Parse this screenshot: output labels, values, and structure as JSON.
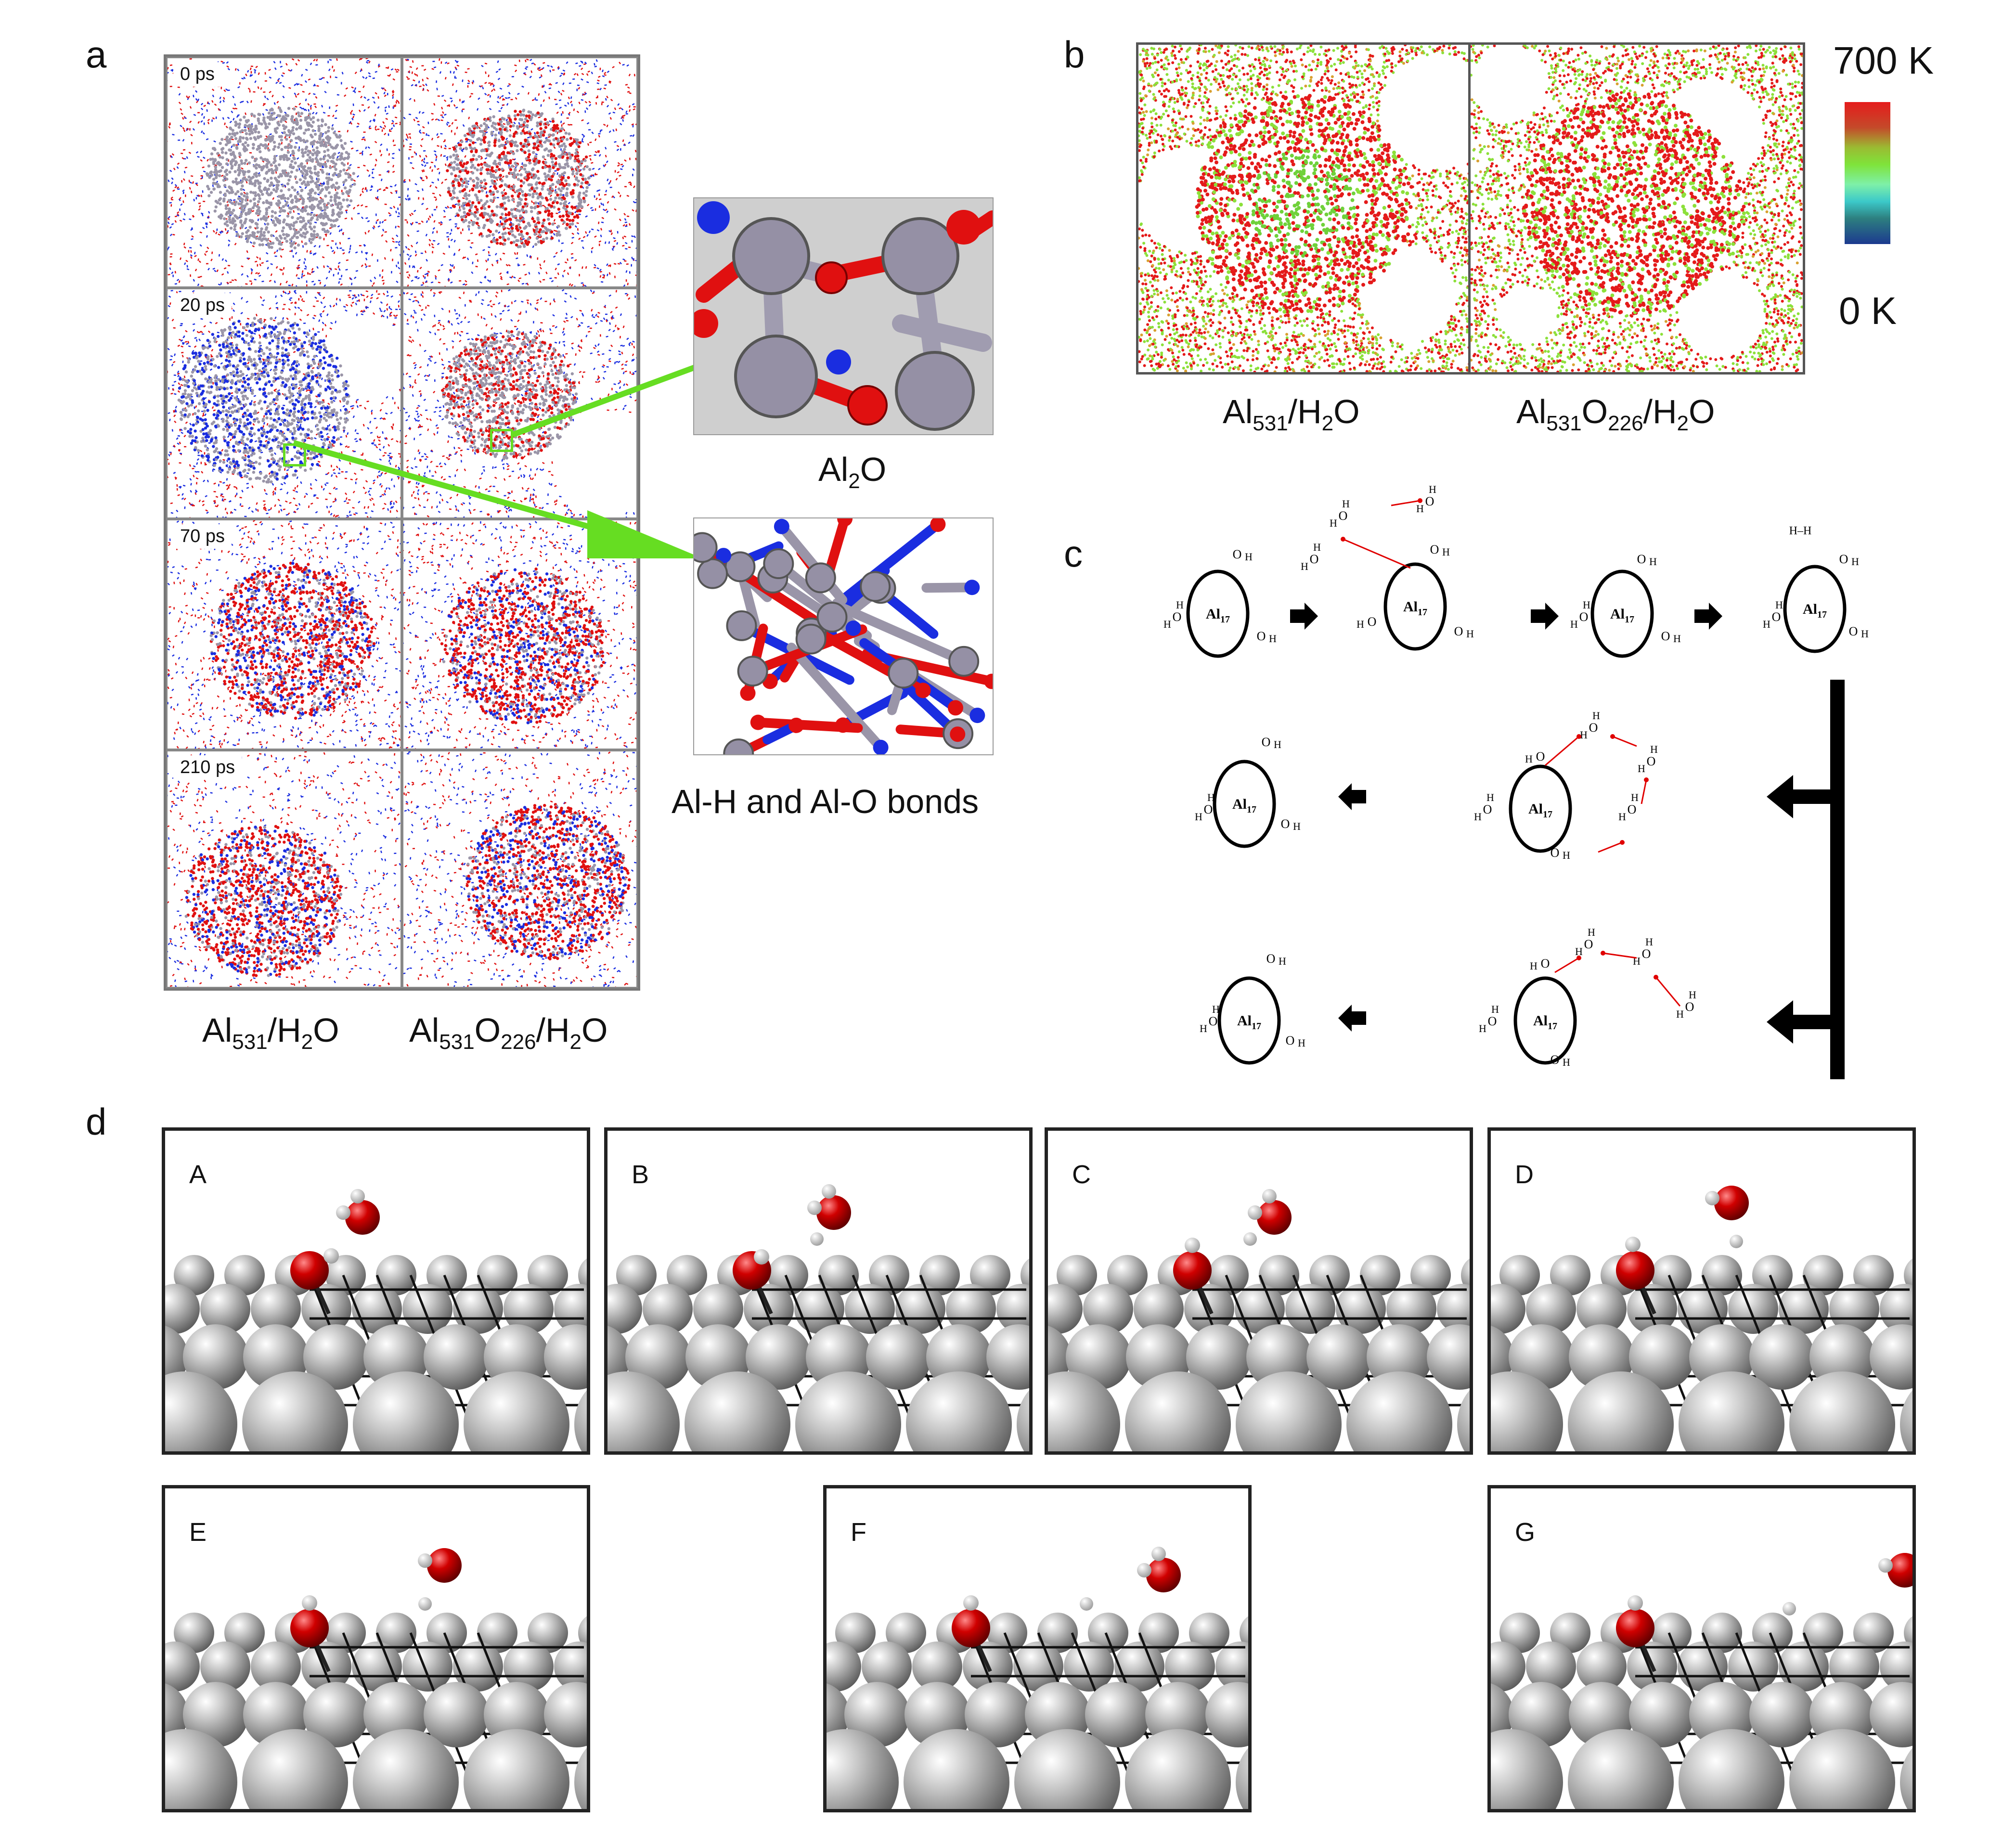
{
  "panels": {
    "a": {
      "letter": "a",
      "time_labels": [
        "0 ps",
        "20 ps",
        "70 ps",
        "210 ps"
      ],
      "col_left": {
        "base": "Al",
        "sub1": "531",
        "mid": "/H",
        "sub2": "2",
        "end": "O"
      },
      "col_right": {
        "base": "Al",
        "sub1": "531",
        "o": "O",
        "sub2": "226",
        "mid": "/H",
        "sub3": "2",
        "end": "O"
      },
      "zoom_top": {
        "base": "Al",
        "sub": "2",
        "end": "O"
      },
      "zoom_bottom": "Al-H and Al-O bonds"
    },
    "b": {
      "letter": "b",
      "scale_max": "700 K",
      "scale_min": "0 K",
      "col_left": {
        "base": "Al",
        "sub1": "531",
        "mid": "/H",
        "sub2": "2",
        "end": "O"
      },
      "col_right": {
        "base": "Al",
        "sub1": "531",
        "o": "O",
        "sub2": "226",
        "mid": "/H",
        "sub3": "2",
        "end": "O"
      }
    },
    "c": {
      "letter": "c",
      "cluster": "Al",
      "cluster_sub": "17",
      "H": "H",
      "O": "O"
    },
    "d": {
      "letter": "d",
      "frames": [
        "A",
        "B",
        "C",
        "D",
        "E",
        "F",
        "G"
      ]
    }
  },
  "colors": {
    "aluminum": "#9a95a8",
    "oxygen": "#e01010",
    "hydrogen": "#1a2de0",
    "arrow_green": "#66dd22",
    "heat_red": "#e41a1a",
    "heat_green": "#8ce03a"
  }
}
